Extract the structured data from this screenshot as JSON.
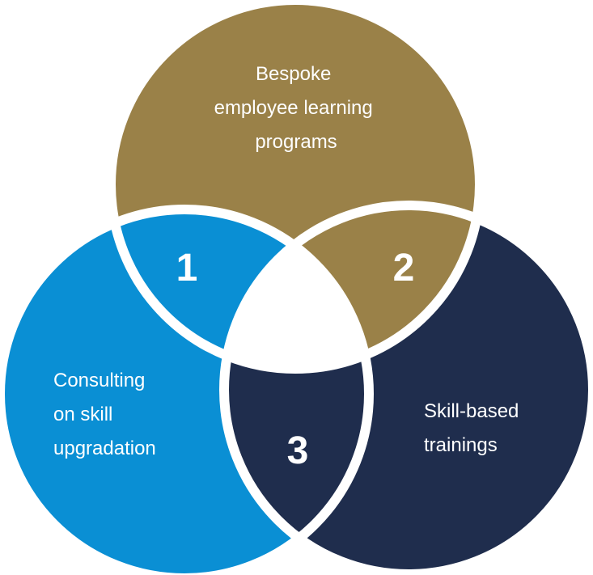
{
  "diagram": {
    "circles": [
      {
        "id": "top",
        "label_lines": [
          "Bespoke",
          "employee learning",
          "programs"
        ],
        "color": "#9a8148"
      },
      {
        "id": "left",
        "label_lines": [
          "Consulting",
          "on skill",
          "upgradation"
        ],
        "color": "#0a8fd4"
      },
      {
        "id": "right",
        "label_lines": [
          "Skill-based",
          "trainings"
        ],
        "color": "#1f2d4d"
      }
    ],
    "regions": [
      {
        "id": "left-top",
        "number": "1",
        "color": "#0a8fd4"
      },
      {
        "id": "top-right",
        "number": "2",
        "color": "#9a8148"
      },
      {
        "id": "left-right",
        "number": "3",
        "color": "#1f2d4d"
      }
    ],
    "center_color": "#ffffff",
    "outline_color": "#ffffff"
  }
}
